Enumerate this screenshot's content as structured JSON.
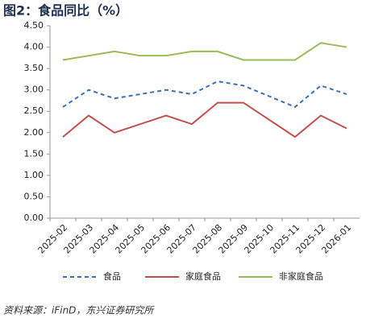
{
  "chart_data": {
    "type": "line",
    "title": "图2：食品同比（%）",
    "source": "资料来源：iFinD，东兴证券研究所",
    "categories": [
      "2025-02",
      "2025-03",
      "2025-04",
      "2025-05",
      "2025-06",
      "2025-07",
      "2025-08",
      "2025-09",
      "2025-10",
      "2025-11",
      "2025-12",
      "2026-01"
    ],
    "series": [
      {
        "name": "食品",
        "color": "#3b6fb6",
        "dashed": true,
        "values": [
          2.6,
          3.0,
          2.8,
          2.9,
          3.0,
          2.9,
          3.2,
          3.1,
          2.85,
          2.6,
          3.1,
          2.9
        ]
      },
      {
        "name": "家庭食品",
        "color": "#c0504d",
        "dashed": false,
        "values": [
          1.9,
          2.4,
          2.0,
          2.2,
          2.4,
          2.2,
          2.7,
          2.7,
          2.3,
          1.9,
          2.4,
          2.1
        ]
      },
      {
        "name": "非家庭食品",
        "color": "#9bbb59",
        "dashed": false,
        "values": [
          3.7,
          3.8,
          3.9,
          3.8,
          3.8,
          3.9,
          3.9,
          3.7,
          3.7,
          3.7,
          4.1,
          4.0
        ]
      }
    ],
    "ylim": [
      0,
      4.5
    ],
    "yticks": [
      {
        "value": 0,
        "label": "0.00"
      },
      {
        "value": 0.5,
        "label": "0.50"
      },
      {
        "value": 1,
        "label": "1.00"
      },
      {
        "value": 1.5,
        "label": "1.50"
      },
      {
        "value": 2,
        "label": "2.00"
      },
      {
        "value": 2.5,
        "label": "2.50"
      },
      {
        "value": 3,
        "label": "3.00"
      },
      {
        "value": 3.5,
        "label": "3.50"
      },
      {
        "value": 4,
        "label": "4.00"
      },
      {
        "value": 4.5,
        "label": "4.50"
      }
    ],
    "grid": false,
    "legend": "bottom"
  }
}
